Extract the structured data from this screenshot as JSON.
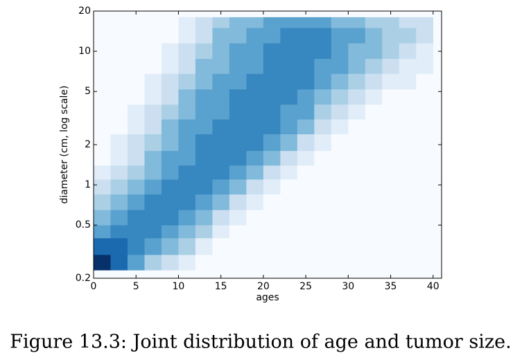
{
  "chart_data": {
    "type": "heatmap",
    "caption": "Figure 13.3: Joint distribution of age and tumor size.",
    "xlabel": "ages",
    "ylabel": "diameter (cm, log scale)",
    "xlim": [
      0,
      41
    ],
    "xticks": [
      0,
      5,
      10,
      15,
      20,
      25,
      30,
      35,
      40
    ],
    "ylim": [
      0.2,
      20
    ],
    "yticks": [
      0.2,
      0.5,
      1,
      2,
      5,
      10,
      20
    ],
    "yscale": "log",
    "xbins": [
      0,
      2,
      4,
      6,
      8,
      10,
      12,
      14,
      16,
      18,
      20,
      22,
      24,
      26,
      28,
      30,
      32,
      34,
      36,
      38,
      40
    ],
    "ybins": [
      0.23,
      0.3,
      0.4,
      0.5,
      0.65,
      0.85,
      1.1,
      1.4,
      1.8,
      2.4,
      3.1,
      4,
      5.2,
      6.8,
      8.8,
      11.5,
      15,
      18
    ],
    "cmap_colors": [
      "#f7fbff",
      "#deebf7",
      "#c6dbef",
      "#9ecae1",
      "#6baed6",
      "#4292c6",
      "#2171b5",
      "#08519c",
      "#08306b"
    ],
    "values": [
      [
        9,
        7,
        5,
        3,
        2,
        1,
        0,
        0,
        0,
        0,
        0,
        0,
        0,
        0,
        0,
        0,
        0,
        0,
        0,
        0
      ],
      [
        7,
        7,
        6,
        5,
        4,
        3,
        1,
        0,
        0,
        0,
        0,
        0,
        0,
        0,
        0,
        0,
        0,
        0,
        0,
        0
      ],
      [
        5,
        6,
        6,
        6,
        5,
        4,
        3,
        1,
        0,
        0,
        0,
        0,
        0,
        0,
        0,
        0,
        0,
        0,
        0,
        0
      ],
      [
        4,
        5,
        6,
        6,
        6,
        5,
        4,
        2,
        1,
        0,
        0,
        0,
        0,
        0,
        0,
        0,
        0,
        0,
        0,
        0
      ],
      [
        3,
        4,
        5,
        6,
        6,
        6,
        5,
        4,
        2,
        1,
        0,
        0,
        0,
        0,
        0,
        0,
        0,
        0,
        0,
        0
      ],
      [
        2,
        3,
        4,
        5,
        6,
        6,
        6,
        5,
        4,
        2,
        1,
        0,
        0,
        0,
        0,
        0,
        0,
        0,
        0,
        0
      ],
      [
        1,
        2,
        3,
        4,
        5,
        6,
        6,
        6,
        5,
        4,
        2,
        1,
        0,
        0,
        0,
        0,
        0,
        0,
        0,
        0
      ],
      [
        0,
        1,
        2,
        4,
        5,
        5,
        6,
        6,
        6,
        5,
        4,
        2,
        1,
        0,
        0,
        0,
        0,
        0,
        0,
        0
      ],
      [
        0,
        1,
        2,
        3,
        4,
        5,
        6,
        6,
        6,
        6,
        5,
        4,
        2,
        1,
        0,
        0,
        0,
        0,
        0,
        0
      ],
      [
        0,
        0,
        1,
        2,
        4,
        5,
        5,
        6,
        6,
        6,
        6,
        5,
        4,
        2,
        1,
        0,
        0,
        0,
        0,
        0
      ],
      [
        0,
        0,
        1,
        2,
        3,
        4,
        5,
        5,
        6,
        6,
        6,
        5,
        5,
        3,
        2,
        1,
        0,
        0,
        0,
        0
      ],
      [
        0,
        0,
        0,
        1,
        2,
        4,
        5,
        5,
        6,
        6,
        6,
        6,
        5,
        4,
        3,
        2,
        1,
        0,
        0,
        0
      ],
      [
        0,
        0,
        0,
        1,
        2,
        3,
        4,
        5,
        5,
        6,
        6,
        6,
        6,
        5,
        4,
        3,
        2,
        1,
        1,
        0
      ],
      [
        0,
        0,
        0,
        0,
        1,
        2,
        4,
        4,
        5,
        5,
        6,
        6,
        6,
        5,
        5,
        4,
        3,
        2,
        1,
        1
      ],
      [
        0,
        0,
        0,
        0,
        1,
        2,
        3,
        4,
        5,
        5,
        6,
        6,
        6,
        6,
        5,
        4,
        4,
        3,
        2,
        1
      ],
      [
        0,
        0,
        0,
        0,
        0,
        1,
        2,
        4,
        4,
        5,
        5,
        6,
        6,
        6,
        5,
        5,
        4,
        3,
        3,
        2
      ],
      [
        0,
        0,
        0,
        0,
        0,
        1,
        2,
        3,
        4,
        4,
        5,
        5,
        5,
        5,
        4,
        4,
        3,
        3,
        2,
        2
      ]
    ]
  }
}
